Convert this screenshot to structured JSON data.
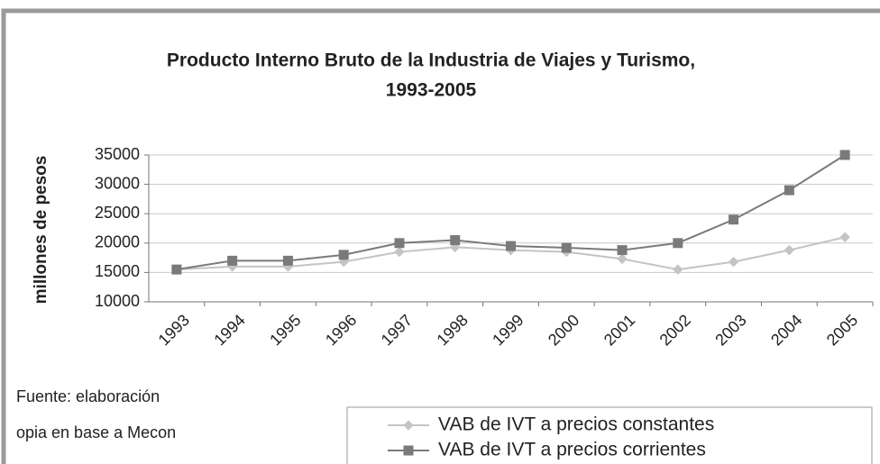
{
  "chart_data": {
    "type": "line",
    "title": "Producto Interno Bruto de la Industria de Viajes y Turismo,",
    "subtitle": "1993-2005",
    "y_label": "millones de pesos",
    "categories": [
      "1993",
      "1994",
      "1995",
      "1996",
      "1997",
      "1998",
      "1999",
      "2000",
      "2001",
      "2002",
      "2003",
      "2004",
      "2005"
    ],
    "series": [
      {
        "name": "VAB de IVT a precios constantes",
        "color": "#c4c4c4",
        "marker": "diamond",
        "values": [
          15500,
          16000,
          16000,
          16800,
          18500,
          19300,
          18800,
          18500,
          17300,
          15500,
          16800,
          18800,
          21000
        ]
      },
      {
        "name": "VAB de IVT a precios corrientes",
        "color": "#7a7a7a",
        "marker": "square",
        "values": [
          15500,
          17000,
          17000,
          18000,
          20000,
          20500,
          19500,
          19200,
          18800,
          20000,
          24000,
          29000,
          35000
        ]
      }
    ],
    "ylim": [
      10000,
      35000
    ],
    "yticks": [
      10000,
      15000,
      20000,
      25000,
      30000,
      35000
    ],
    "grid": true,
    "source": [
      "Fuente: elaboración",
      "opia en base a Mecon"
    ]
  }
}
